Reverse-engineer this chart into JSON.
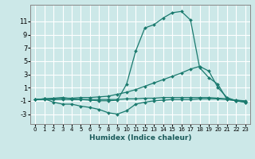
{
  "xlabel": "Humidex (Indice chaleur)",
  "xlim": [
    -0.5,
    23.5
  ],
  "ylim": [
    -4.5,
    13.5
  ],
  "yticks": [
    -3,
    -1,
    1,
    3,
    5,
    7,
    9,
    11
  ],
  "xticks": [
    0,
    1,
    2,
    3,
    4,
    5,
    6,
    7,
    8,
    9,
    10,
    11,
    12,
    13,
    14,
    15,
    16,
    17,
    18,
    19,
    20,
    21,
    22,
    23
  ],
  "bg_color": "#cce8e8",
  "grid_color": "#ffffff",
  "line_color": "#1a7a6e",
  "curves": [
    {
      "x": [
        0,
        1,
        2,
        3,
        4,
        5,
        6,
        7,
        8,
        9,
        10,
        11,
        12,
        13,
        14,
        15,
        16,
        17,
        18,
        19,
        20,
        21,
        22,
        23
      ],
      "y": [
        -0.8,
        -0.7,
        -0.6,
        -0.5,
        -0.7,
        -0.8,
        -0.9,
        -1.0,
        -1.0,
        -0.9,
        1.5,
        6.5,
        10.0,
        10.5,
        11.5,
        12.3,
        12.5,
        11.2,
        4.0,
        2.5,
        1.5,
        -0.8,
        -1.0,
        -1.2
      ]
    },
    {
      "x": [
        0,
        1,
        2,
        3,
        4,
        5,
        6,
        7,
        8,
        9,
        10,
        11,
        12,
        13,
        14,
        15,
        16,
        17,
        18,
        19,
        20,
        21,
        22,
        23
      ],
      "y": [
        -0.8,
        -0.7,
        -1.2,
        -1.5,
        -1.5,
        -1.8,
        -2.0,
        -2.3,
        -2.8,
        -3.0,
        -2.5,
        -1.5,
        -1.2,
        -1.0,
        -0.9,
        -0.8,
        -0.8,
        -0.8,
        -0.7,
        -0.7,
        -0.7,
        -0.8,
        -0.9,
        -1.0
      ]
    },
    {
      "x": [
        0,
        1,
        2,
        3,
        4,
        5,
        6,
        7,
        8,
        9,
        10,
        11,
        12,
        13,
        14,
        15,
        16,
        17,
        18,
        19,
        20,
        21,
        22,
        23
      ],
      "y": [
        -0.8,
        -0.7,
        -0.7,
        -0.6,
        -0.6,
        -0.5,
        -0.5,
        -0.4,
        -0.3,
        0.0,
        0.3,
        0.7,
        1.2,
        1.7,
        2.2,
        2.7,
        3.2,
        3.8,
        4.2,
        3.5,
        1.0,
        -0.5,
        -1.0,
        -1.2
      ]
    },
    {
      "x": [
        0,
        1,
        2,
        3,
        4,
        5,
        6,
        7,
        8,
        9,
        10,
        11,
        12,
        13,
        14,
        15,
        16,
        17,
        18,
        19,
        20,
        21,
        22,
        23
      ],
      "y": [
        -0.8,
        -0.8,
        -0.8,
        -0.8,
        -0.8,
        -0.8,
        -0.8,
        -0.8,
        -0.8,
        -0.8,
        -0.7,
        -0.7,
        -0.6,
        -0.6,
        -0.5,
        -0.5,
        -0.5,
        -0.5,
        -0.5,
        -0.5,
        -0.6,
        -0.7,
        -0.9,
        -1.1
      ]
    }
  ]
}
